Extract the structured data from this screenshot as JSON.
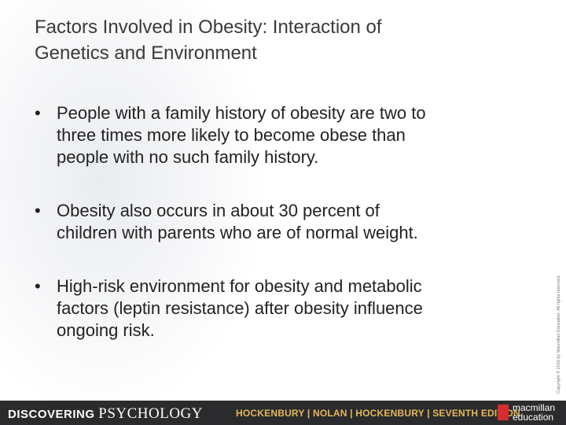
{
  "slide": {
    "title": [
      "Factors Involved in Obesity: Interaction of",
      "Genetics and Environment"
    ],
    "bullets": [
      [
        "People with a family history of obesity are two to",
        "three times more likely to become obese than",
        "people with no such family history."
      ],
      [
        "Obesity also occurs in about 30 percent of",
        "children with parents who are of normal weight."
      ],
      [
        "High-risk environment for obesity and metabolic",
        "factors (leptin resistance) after obesity influence",
        "ongoing risk."
      ]
    ],
    "copyright": "Copyright © 2016 by Macmillan Education. All rights reserved.",
    "footer": {
      "book_bold": "DISCOVERING",
      "book_light": "PSYCHOLOGY",
      "authors": "HOCKENBURY | NOLAN | HOCKENBURY | SEVENTH EDITION",
      "publisher": [
        "macmillan",
        "education"
      ]
    }
  }
}
